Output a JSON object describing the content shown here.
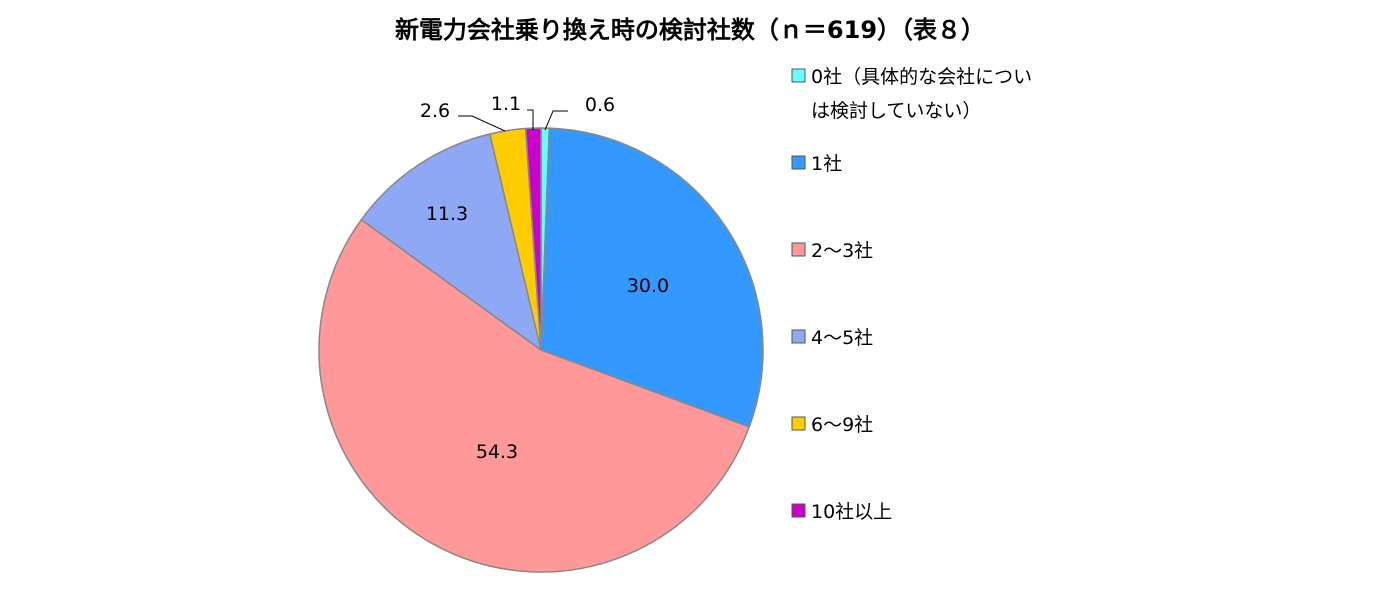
{
  "chart_data": {
    "type": "pie",
    "title": "新電力会社乗り換え時の検討社数（ｎ＝619）（表８）",
    "categories": [
      "0社（具体的な会社については検討していない）",
      "1社",
      "2～3社",
      "4～5社",
      "6～9社",
      "10社以上"
    ],
    "values": [
      0.6,
      30.0,
      54.3,
      11.3,
      2.6,
      1.1
    ],
    "value_labels": [
      "0.6",
      "30.0",
      "54.3",
      "11.3",
      "2.6",
      "1.1"
    ],
    "legend_lines": [
      [
        "0社（具体的な会社につい",
        "は検討していない）"
      ],
      [
        "1社"
      ],
      [
        "2～3社"
      ],
      [
        "4～5社"
      ],
      [
        "6～9社"
      ],
      [
        "10社以上"
      ]
    ],
    "colors": [
      "#66FFFF",
      "#3399FF",
      "#FF9999",
      "#8FA8F5",
      "#FFCC00",
      "#CC00CC"
    ],
    "legend_position": "right",
    "start_angle": "12 o'clock",
    "direction": "clockwise"
  }
}
